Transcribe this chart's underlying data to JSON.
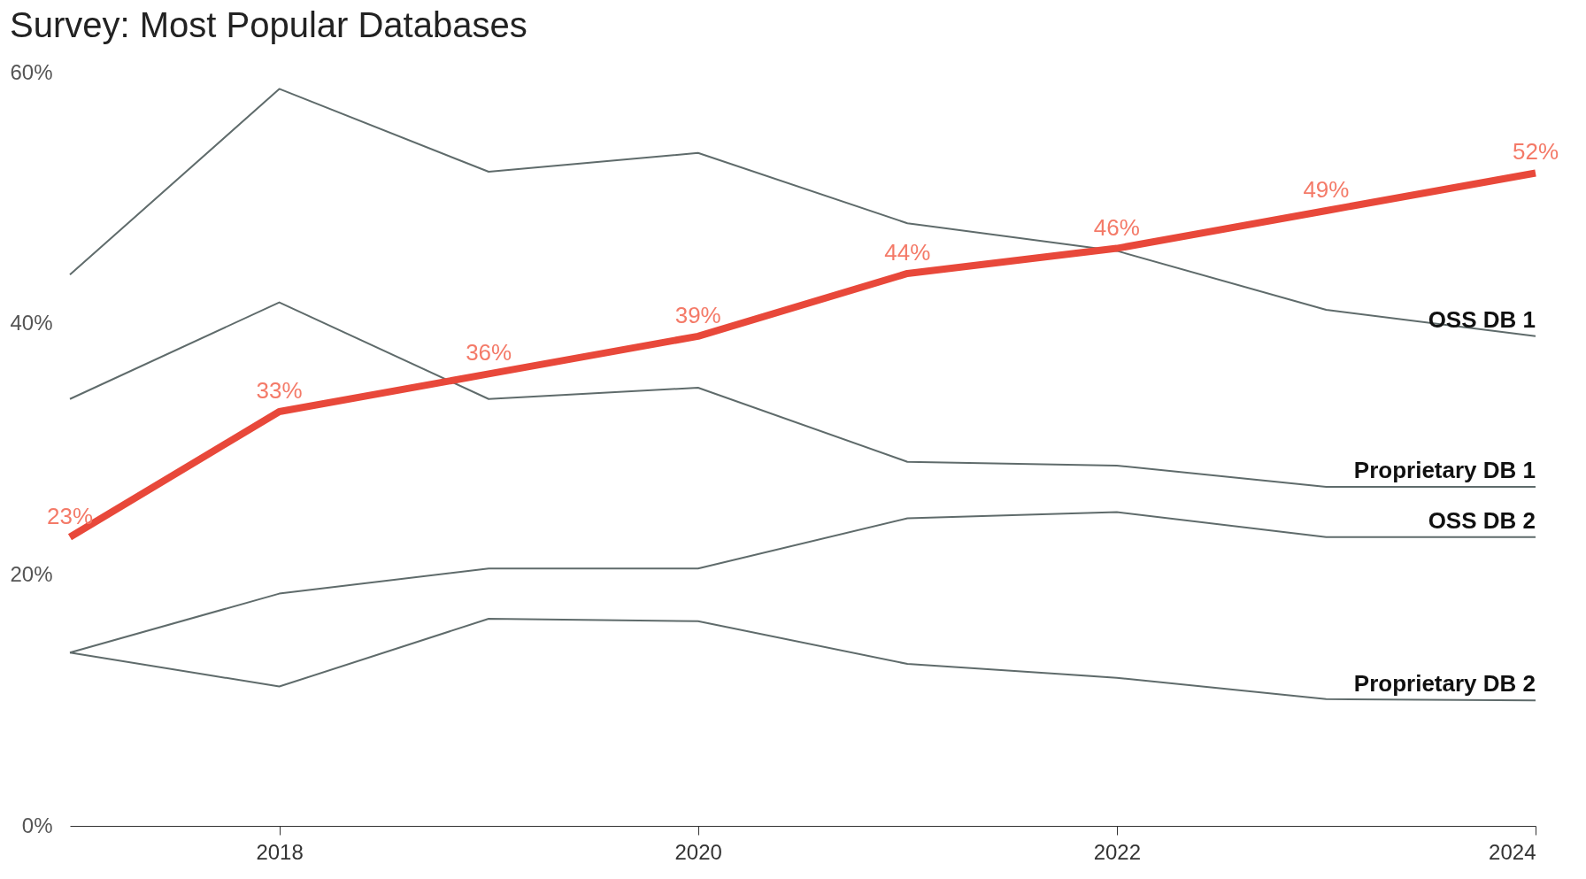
{
  "chart_data": {
    "type": "line",
    "title": "Survey: Most Popular Databases",
    "x": [
      2017,
      2018,
      2019,
      2020,
      2021,
      2022,
      2023,
      2024
    ],
    "xlim": [
      2017,
      2024
    ],
    "xticks": [
      2018,
      2020,
      2022,
      2024
    ],
    "ylim": [
      0,
      60
    ],
    "yticks": [
      {
        "value": 0,
        "label": "0%"
      },
      {
        "value": 20,
        "label": "20%"
      },
      {
        "value": 40,
        "label": "40%"
      },
      {
        "value": 60,
        "label": "60%"
      }
    ],
    "grid": false,
    "legend": false,
    "marker": "none",
    "line_style": "solid",
    "series": [
      {
        "name": "OSS DB 1",
        "color": "#5f6b6b",
        "values": [
          43.9,
          58.7,
          52.1,
          53.6,
          48.0,
          45.8,
          41.1,
          39.0
        ]
      },
      {
        "name": "Proprietary DB 1",
        "color": "#5f6b6b",
        "values": [
          34.0,
          41.7,
          34.0,
          34.9,
          29.0,
          28.7,
          27.0,
          27.0
        ]
      },
      {
        "name": "OSS DB 2",
        "color": "#5f6b6b",
        "values": [
          13.8,
          18.5,
          20.5,
          20.5,
          24.5,
          25.0,
          23.0,
          23.0
        ]
      },
      {
        "name": "Proprietary DB 2",
        "color": "#5f6b6b",
        "values": [
          13.8,
          11.1,
          16.5,
          16.3,
          12.9,
          11.8,
          10.1,
          10.0
        ]
      },
      {
        "color": "#e8483a",
        "values": [
          23,
          33,
          36,
          39,
          44,
          46,
          49,
          52
        ],
        "value_labels": [
          "23%",
          "33%",
          "36%",
          "39%",
          "44%",
          "46%",
          "49%",
          "52%"
        ]
      }
    ]
  }
}
